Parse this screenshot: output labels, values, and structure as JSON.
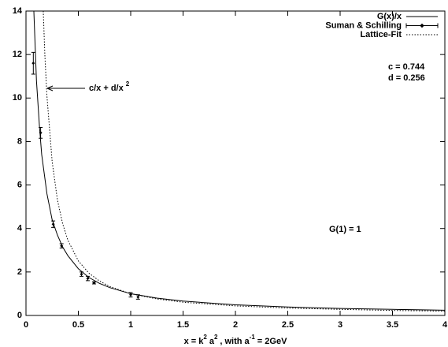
{
  "chart_data": {
    "type": "line",
    "x_label_parts": [
      {
        "text": "x = k"
      },
      {
        "text": "2",
        "sup": true
      },
      {
        "text": "a"
      },
      {
        "text": "2",
        "sup": true
      },
      {
        "text": ", with a"
      },
      {
        "text": "-1",
        "sup": true
      },
      {
        "text": "= 2GeV"
      }
    ],
    "xlim": [
      0,
      4
    ],
    "xticks": [
      0,
      0.5,
      1,
      1.5,
      2,
      2.5,
      3,
      3.5,
      4
    ],
    "ylim": [
      0,
      14
    ],
    "yticks": [
      0,
      2,
      4,
      6,
      8,
      10,
      12,
      14
    ],
    "grid": false,
    "legend": "top right",
    "series": [
      {
        "name": "G(x)/x",
        "style": "solid",
        "color": "#000000",
        "x": [
          0.075,
          0.1,
          0.13,
          0.15,
          0.2,
          0.25,
          0.3,
          0.35,
          0.4,
          0.5,
          0.6,
          0.7,
          0.8,
          1,
          1.25,
          1.5,
          2,
          2.5,
          3,
          3.5,
          4
        ],
        "values": [
          14,
          10.8,
          8.6,
          7.4,
          5.6,
          4.4,
          3.7,
          3.15,
          2.75,
          2.15,
          1.75,
          1.48,
          1.28,
          1.0,
          0.8,
          0.66,
          0.49,
          0.39,
          0.32,
          0.28,
          0.24
        ]
      },
      {
        "name": "Suman & Schilling",
        "style": "errorbars",
        "color": "#000000",
        "x": [
          0.07,
          0.14,
          0.26,
          0.34,
          0.53,
          0.59,
          0.65,
          1.0,
          1.07
        ],
        "values": [
          11.6,
          8.4,
          4.2,
          3.2,
          1.9,
          1.7,
          1.5,
          0.95,
          0.85
        ],
        "errors": [
          0.5,
          0.25,
          0.15,
          0.1,
          0.1,
          0.1,
          0.05,
          0.1,
          0.1
        ]
      },
      {
        "name": "Lattice-Fit",
        "style": "dotted",
        "color": "#000000",
        "x": [
          0.165,
          0.18,
          0.2,
          0.25,
          0.3,
          0.35,
          0.4,
          0.5,
          0.6,
          0.7,
          0.8,
          1,
          1.25,
          1.5,
          2,
          2.5,
          3,
          3.5,
          4
        ],
        "values": [
          14,
          12.0,
          10.1,
          7.07,
          5.32,
          4.22,
          3.46,
          2.51,
          1.95,
          1.59,
          1.33,
          1.0,
          0.76,
          0.61,
          0.44,
          0.34,
          0.28,
          0.23,
          0.2
        ]
      }
    ],
    "annotations": {
      "c": "c = 0.744",
      "d": "d = 0.256",
      "g1": "G(1) = 1",
      "fit_text": "c/x + d/x",
      "fit_sup": "2"
    }
  }
}
